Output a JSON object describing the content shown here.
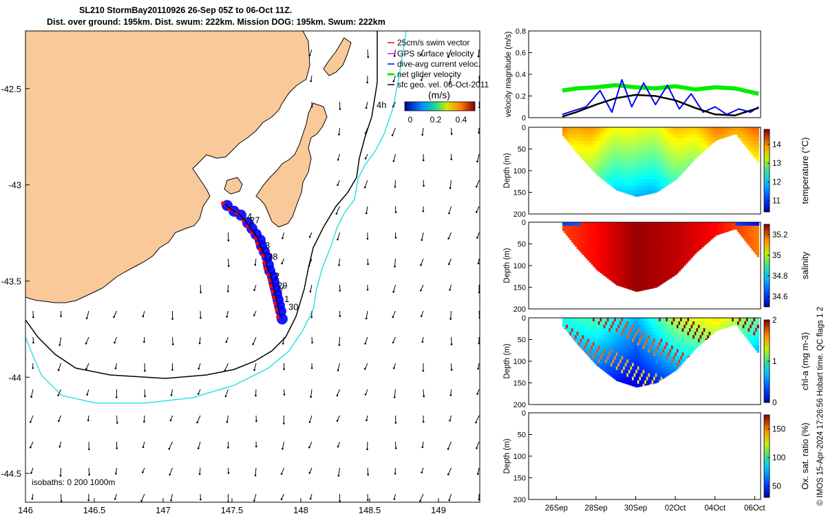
{
  "title": {
    "line1": "SL210 StormBay20110926 26-Sep 05Z to 06-Oct 11Z.",
    "line2": "Dist. over ground: 195km. Dist. swum: 222km. Mission DOG: 195km. Swum: 222km"
  },
  "footer": "© IMOS 15-Apr-2024 17:26:56 Hobart time. QC flags 1  2",
  "colors": {
    "land": "#f9c99a",
    "isobath_200": "#000000",
    "isobath_1000": "#2ee0e0",
    "track_swim": "#ff0000",
    "track_current": "#0000ff",
    "net_velocity": "#00ee00",
    "sfc_geo_velocity": "#000000",
    "gps_velocity": "#ff00ff"
  },
  "chart_data": [
    {
      "type": "map",
      "xlim": [
        146,
        149.3
      ],
      "ylim": [
        -44.65,
        -42.2
      ],
      "xticks": [
        "146",
        "146.5",
        "147",
        "147.5",
        "148",
        "148.5",
        "149"
      ],
      "yticks": [
        "-42.5",
        "-43",
        "-43.5",
        "-44",
        "-44.5"
      ],
      "isobath_label": "isobaths: 0  200  1000m",
      "legend": {
        "placement": "top-right",
        "entries": [
          "25cm/s swim vector",
          "GPS surface velocity",
          "dive-avg current veloc.",
          "net glider velocity",
          "sfc geo. vel. 06-Oct-2011"
        ],
        "colorbar_title": "(m/s)",
        "colorbar_ticks": [
          "0",
          "0.2",
          "0.4"
        ],
        "colorbar_range": [
          0,
          0.5
        ]
      },
      "track_labels": [
        {
          "text": "4",
          "lon": 147.61,
          "lat": -43.18
        },
        {
          "text": "27",
          "lon": 147.63,
          "lat": -43.2
        },
        {
          "text": "3",
          "lon": 147.74,
          "lat": -43.33
        },
        {
          "text": "28",
          "lon": 147.76,
          "lat": -43.39
        },
        {
          "text": "2",
          "lon": 147.81,
          "lat": -43.49
        },
        {
          "text": "29",
          "lon": 147.83,
          "lat": -43.54
        },
        {
          "text": "1",
          "lon": 147.88,
          "lat": -43.61
        },
        {
          "text": "30",
          "lon": 147.91,
          "lat": -43.65
        },
        {
          "text": "4h",
          "lon": 148.55,
          "lat": -42.6
        }
      ],
      "track": {
        "lon": [
          147.45,
          147.5,
          147.55,
          147.6,
          147.63,
          147.66,
          147.69,
          147.7,
          147.72,
          147.74,
          147.75,
          147.76,
          147.78,
          147.79,
          147.8,
          147.81,
          147.82,
          147.83,
          147.84,
          147.85
        ],
        "lat": [
          -43.1,
          -43.13,
          -43.15,
          -43.19,
          -43.22,
          -43.25,
          -43.28,
          -43.31,
          -43.34,
          -43.37,
          -43.41,
          -43.44,
          -43.47,
          -43.5,
          -43.53,
          -43.56,
          -43.59,
          -43.62,
          -43.65,
          -43.69
        ]
      }
    },
    {
      "type": "line",
      "ylabel": "velocity magnitude (m/s)",
      "ylim": [
        0,
        0.8
      ],
      "yticks": [
        "0",
        "0.2",
        "0.4",
        "0.6",
        "0.8"
      ],
      "xlim_days": [
        24.6,
        36.3
      ],
      "series": [
        {
          "color": "net_velocity",
          "x": [
            26.3,
            27,
            28,
            29,
            30,
            31,
            32,
            33,
            34,
            35,
            36.2
          ],
          "y": [
            0.25,
            0.27,
            0.28,
            0.3,
            0.28,
            0.27,
            0.29,
            0.26,
            0.28,
            0.27,
            0.22
          ]
        },
        {
          "color": "track_current",
          "x": [
            26.3,
            26.8,
            27.5,
            28.2,
            28.8,
            29.3,
            29.8,
            30.4,
            31,
            31.6,
            32.2,
            32.8,
            33.4,
            34,
            34.6,
            35.2,
            35.8,
            36.2
          ],
          "y": [
            0.03,
            0.06,
            0.1,
            0.25,
            0.05,
            0.35,
            0.1,
            0.32,
            0.12,
            0.3,
            0.08,
            0.22,
            0.05,
            0.1,
            0.03,
            0.08,
            0.05,
            0.1
          ]
        },
        {
          "color": "sfc_geo_velocity",
          "x": [
            26.3,
            27,
            28,
            29,
            30,
            31,
            32,
            33,
            34,
            35,
            36.2
          ],
          "y": [
            0.01,
            0.05,
            0.12,
            0.18,
            0.21,
            0.2,
            0.16,
            0.09,
            0.03,
            0.02,
            0.09
          ]
        }
      ]
    },
    {
      "type": "heatmap",
      "ylabel": "Depth (m)",
      "clabel": "temperature (°C)",
      "yticks": [
        "0",
        "50",
        "100",
        "150",
        "200"
      ],
      "ylim": [
        0,
        200
      ],
      "clim": [
        10.4,
        14.8
      ],
      "cticks": [
        "11",
        "12",
        "13",
        "14"
      ],
      "bottom_depth": {
        "x": [
          26.3,
          27,
          28,
          29,
          30,
          31,
          32,
          33,
          34,
          35,
          36.2
        ],
        "y": [
          20,
          60,
          110,
          145,
          160,
          150,
          120,
          70,
          30,
          15,
          85
        ]
      },
      "profile": {
        "x": [
          26.3,
          28,
          30,
          32,
          34,
          36.2
        ],
        "values": [
          12.9,
          12.6,
          12.2,
          12.5,
          12.8,
          12.9
        ]
      }
    },
    {
      "type": "heatmap",
      "ylabel": "Depth (m)",
      "clabel": "salinity",
      "yticks": [
        "0",
        "50",
        "100",
        "150",
        "200"
      ],
      "ylim": [
        0,
        200
      ],
      "clim": [
        34.5,
        35.3
      ],
      "cticks": [
        "34.6",
        "34.8",
        "35",
        "35.2"
      ],
      "bottom_depth": {
        "x": [
          26.3,
          27,
          28,
          29,
          30,
          31,
          32,
          33,
          34,
          35,
          36.2
        ],
        "y": [
          20,
          60,
          110,
          145,
          160,
          150,
          120,
          70,
          30,
          15,
          85
        ]
      },
      "profile": {
        "x": [
          26.3,
          28,
          30,
          32,
          34,
          36.2
        ],
        "values": [
          35.15,
          35.2,
          35.28,
          35.25,
          35.2,
          35.1
        ]
      }
    },
    {
      "type": "heatmap",
      "ylabel": "Depth (m)",
      "clabel": "chl-a (mg m-3)",
      "yticks": [
        "0",
        "50",
        "100",
        "150",
        "200"
      ],
      "ylim": [
        0,
        200
      ],
      "clim": [
        0,
        2
      ],
      "cticks": [
        "0",
        "1",
        "2"
      ],
      "bottom_depth": {
        "x": [
          26.3,
          27,
          28,
          29,
          30,
          31,
          32,
          33,
          34,
          35,
          36.2
        ],
        "y": [
          20,
          60,
          110,
          145,
          160,
          150,
          120,
          70,
          30,
          15,
          85
        ]
      },
      "profile": {
        "x": [
          26.3,
          28,
          30,
          32,
          34,
          36.2
        ],
        "values": [
          0.8,
          0.9,
          0.6,
          1.1,
          1.3,
          0.9
        ]
      }
    },
    {
      "type": "heatmap",
      "ylabel": "Depth (m)",
      "clabel": "Ox. sat. ratio (%)",
      "yticks": [
        "0",
        "50",
        "100",
        "150",
        "200"
      ],
      "ylim": [
        0,
        200
      ],
      "clim": [
        30,
        175
      ],
      "cticks": [
        "50",
        "100",
        "150"
      ],
      "xticks": [
        "26Sep",
        "28Sep",
        "30Sep",
        "02Oct",
        "04Oct",
        "06Oct"
      ],
      "xtick_days": [
        26,
        28,
        30,
        32,
        34,
        36
      ]
    }
  ]
}
